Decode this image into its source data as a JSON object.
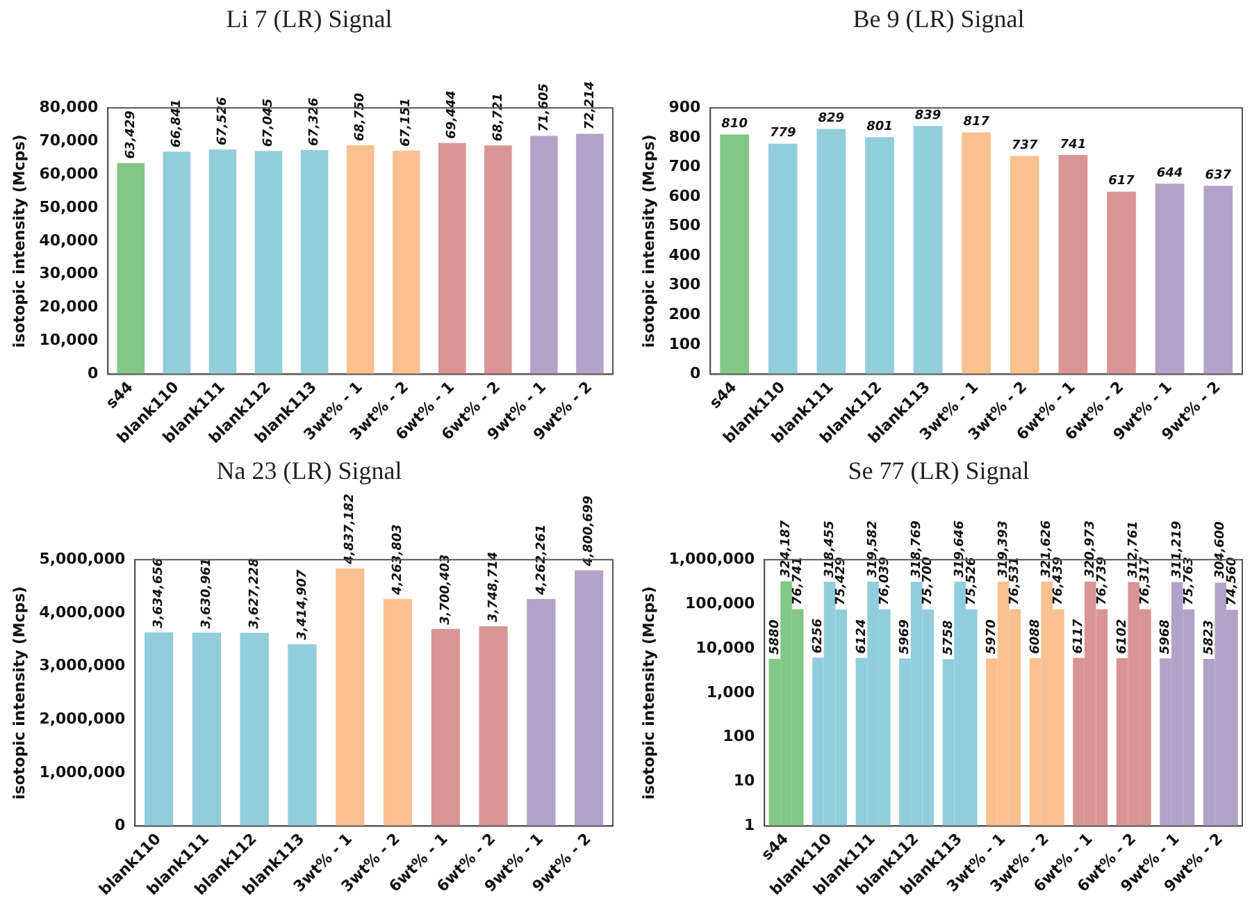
{
  "chart_data": [
    {
      "type": "bar",
      "title": "Li 7 (LR) Signal",
      "ylabel": "isotopic intensity (Mcps)",
      "categories": [
        "s44",
        "blank110",
        "blank111",
        "blank112",
        "blank113",
        "3wt% - 1",
        "3wt% - 2",
        "6wt% - 1",
        "6wt% - 2",
        "9wt% - 1",
        "9wt% - 2"
      ],
      "values": [
        63429,
        66841,
        67526,
        67045,
        67326,
        68750,
        67151,
        69444,
        68721,
        71605,
        72214
      ],
      "value_labels": [
        "63,429",
        "66,841",
        "67,526",
        "67,045",
        "67,326",
        "68,750",
        "67,151",
        "69,444",
        "68,721",
        "71,605",
        "72,214"
      ],
      "colors": [
        "#82c785",
        "#92cddc",
        "#92cddc",
        "#92cddc",
        "#92cddc",
        "#fac090",
        "#fac090",
        "#d99594",
        "#d99594",
        "#b3a2c7",
        "#b3a2c7"
      ],
      "ylim": [
        0,
        80000
      ],
      "yticks": [
        0,
        {
          "value": 10000,
          "label": "10,000"
        },
        {
          "value": 20000,
          "label": "20,000"
        },
        {
          "value": 30000,
          "label": "30,000"
        },
        {
          "value": 40000,
          "label": "40,000"
        },
        {
          "value": 50000,
          "label": "50,000"
        },
        {
          "value": 60000,
          "label": "60,000"
        },
        {
          "value": 70000,
          "label": "70,000"
        },
        {
          "value": 80000,
          "label": "80,000"
        }
      ],
      "grid": false,
      "legend": false
    },
    {
      "type": "bar",
      "title": "Be 9 (LR) Signal",
      "ylabel": "isotopic intensity (Mcps)",
      "categories": [
        "s44",
        "blank110",
        "blank111",
        "blank112",
        "blank113",
        "3wt% - 1",
        "3wt% - 2",
        "6wt% - 1",
        "6wt% - 2",
        "9wt% - 1",
        "9wt% - 2"
      ],
      "values": [
        810,
        779,
        829,
        801,
        839,
        817,
        737,
        741,
        617,
        644,
        637
      ],
      "colors": [
        "#82c785",
        "#92cddc",
        "#92cddc",
        "#92cddc",
        "#92cddc",
        "#fac090",
        "#fac090",
        "#d99594",
        "#d99594",
        "#b3a2c7",
        "#b3a2c7"
      ],
      "ylim": [
        0,
        900
      ],
      "yticks": [
        0,
        100,
        200,
        300,
        400,
        500,
        600,
        700,
        800,
        900
      ],
      "data_labels": true,
      "grid": false,
      "legend": false
    },
    {
      "type": "bar",
      "title": "Na 23 (LR) Signal",
      "ylabel": "isotopic intensity (Mcps)",
      "categories": [
        "blank110",
        "blank111",
        "blank112",
        "blank113",
        "3wt% - 1",
        "3wt% - 2",
        "6wt% - 1",
        "6wt% - 2",
        "9wt% - 1",
        "9wt% - 2"
      ],
      "values": [
        3634656,
        3630961,
        3627228,
        3414907,
        4837182,
        4263803,
        3700403,
        3748714,
        4262261,
        4800699
      ],
      "value_labels": [
        "3,634,656",
        "3,630,961",
        "3,627,228",
        "3,414,907",
        "4,837,182",
        "4,263,803",
        "3,700,403",
        "3,748,714",
        "4,262,261",
        "4,800,699"
      ],
      "colors": [
        "#92cddc",
        "#92cddc",
        "#92cddc",
        "#92cddc",
        "#fac090",
        "#fac090",
        "#d99594",
        "#d99594",
        "#b3a2c7",
        "#b3a2c7"
      ],
      "ylim": [
        0,
        5000000
      ],
      "yticks": [
        0,
        {
          "value": 1000000,
          "label": "1,000,000"
        },
        {
          "value": 2000000,
          "label": "2,000,000"
        },
        {
          "value": 3000000,
          "label": "3,000,000"
        },
        {
          "value": 4000000,
          "label": "4,000,000"
        },
        {
          "value": 5000000,
          "label": "5,000,000"
        }
      ],
      "grid": false,
      "legend": false
    },
    {
      "type": "bar",
      "title": "Se 77 (LR) Signal",
      "ylabel": "isotopic intensity (Mcps)",
      "categories": [
        "s44",
        "blank110",
        "blank111",
        "blank112",
        "blank113",
        "3wt% - 1",
        "3wt% - 2",
        "6wt% - 1",
        "6wt% - 2",
        "9wt% - 1",
        "9wt% - 2"
      ],
      "series": [
        {
          "colors": [
            "#82c785",
            "#92cddc",
            "#92cddc",
            "#92cddc",
            "#92cddc",
            "#fac090",
            "#fac090",
            "#d99594",
            "#d99594",
            "#b3a2c7",
            "#b3a2c7"
          ],
          "values": [
            5880,
            6256,
            6124,
            5969,
            5758,
            5970,
            6088,
            6117,
            6102,
            5968,
            5823
          ],
          "value_labels": [
            "5880",
            "6256",
            "6124",
            "5969",
            "5758",
            "5970",
            "6088",
            "6117",
            "6102",
            "5968",
            "5823"
          ]
        },
        {
          "colors": [
            "#82c785",
            "#92cddc",
            "#92cddc",
            "#92cddc",
            "#92cddc",
            "#fac090",
            "#fac090",
            "#d99594",
            "#d99594",
            "#b3a2c7",
            "#b3a2c7"
          ],
          "values": [
            324187,
            318455,
            319582,
            318769,
            319646,
            319393,
            321626,
            320973,
            312761,
            311219,
            304600
          ],
          "value_labels": [
            "324,187",
            "318,455",
            "319,582",
            "318,769",
            "319,646",
            "319,393",
            "321,626",
            "320,973",
            "312,761",
            "311,219",
            "304,600"
          ]
        },
        {
          "colors": [
            "#82c785",
            "#92cddc",
            "#92cddc",
            "#92cddc",
            "#92cddc",
            "#fac090",
            "#fac090",
            "#d99594",
            "#d99594",
            "#b3a2c7",
            "#b3a2c7"
          ],
          "values": [
            76741,
            75429,
            76039,
            75700,
            75526,
            76531,
            76439,
            76739,
            76317,
            75763,
            74560
          ],
          "value_labels": [
            "76,741",
            "75,429",
            "76,039",
            "75,700",
            "75,526",
            "76,531",
            "76,439",
            "76,739",
            "76,317",
            "75,763",
            "74,560"
          ]
        }
      ],
      "log": true,
      "ylim": [
        1,
        1000000
      ],
      "yticks": [
        1,
        10,
        100,
        {
          "value": 1000,
          "label": "1,000"
        },
        {
          "value": 10000,
          "label": "10,000"
        },
        {
          "value": 100000,
          "label": "100,000"
        },
        {
          "value": 1000000,
          "label": "1,000,000"
        }
      ],
      "grid": false,
      "legend": false
    }
  ]
}
